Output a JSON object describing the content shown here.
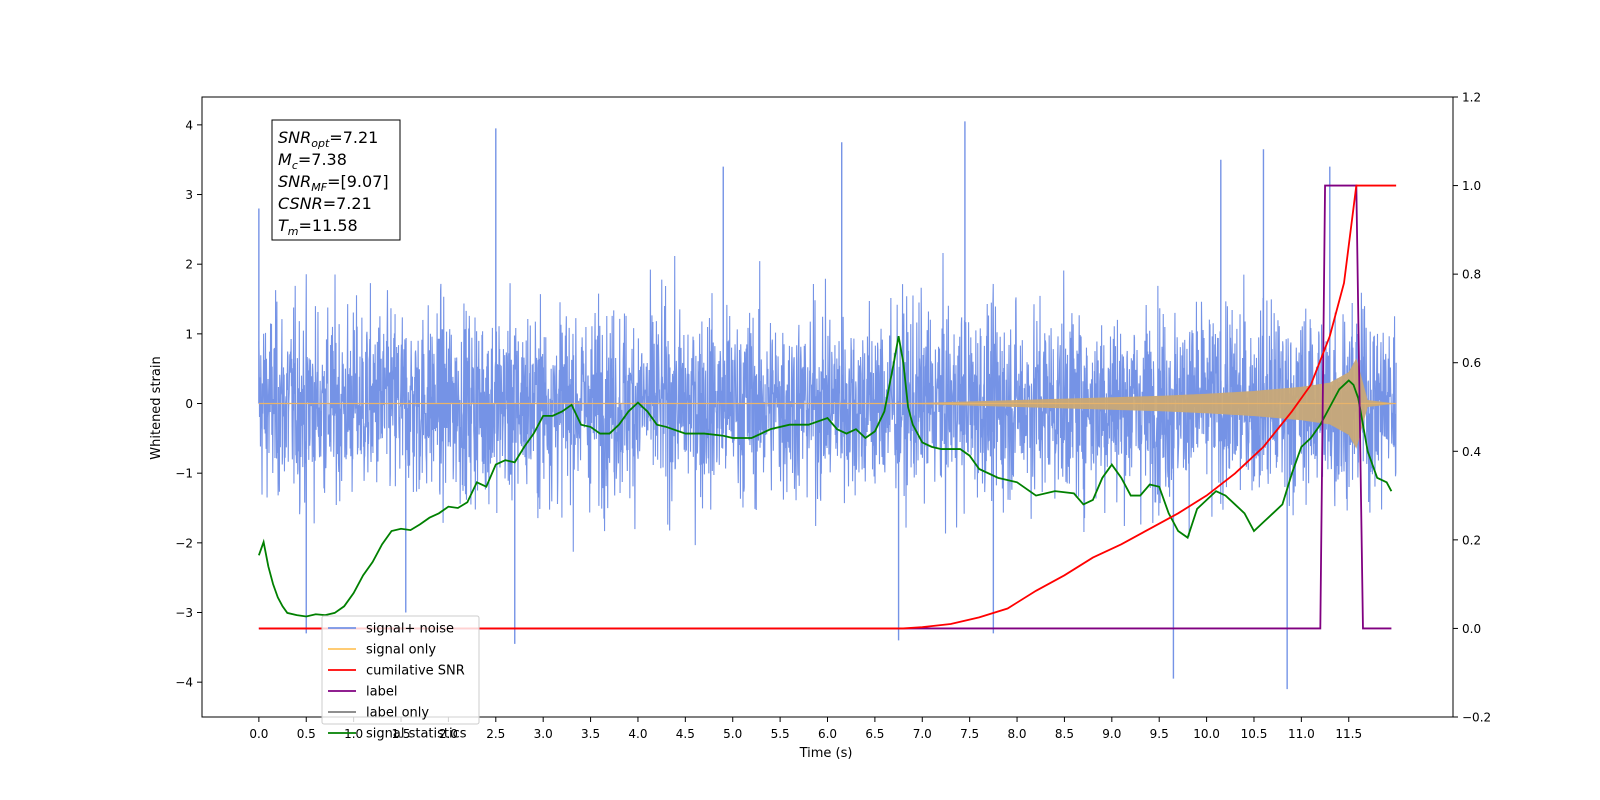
{
  "chart_data": {
    "type": "line",
    "xlabel": "Time (s)",
    "ylabel_left": "Whitened strain",
    "ylabel_right": "",
    "xlim": [
      -0.6,
      12.6
    ],
    "ylim_left": [
      -4.5,
      4.4
    ],
    "ylim_right": [
      -0.2,
      1.2
    ],
    "x_ticks": [
      "0.0",
      "0.5",
      "1.0",
      "1.5",
      "2.0",
      "2.5",
      "3.0",
      "3.5",
      "4.0",
      "4.5",
      "5.0",
      "5.5",
      "6.0",
      "6.5",
      "7.0",
      "7.5",
      "8.0",
      "8.5",
      "9.0",
      "9.5",
      "10.0",
      "10.5",
      "11.0",
      "11.5"
    ],
    "y_ticks_left": [
      "−4",
      "−3",
      "−2",
      "−1",
      "0",
      "1",
      "2",
      "3",
      "4"
    ],
    "y_ticks_right": [
      "−0.2",
      "0.0",
      "0.2",
      "0.4",
      "0.6",
      "0.8",
      "1.0",
      "1.2"
    ],
    "grid": false,
    "legend_position": "lower-left",
    "legend": [
      {
        "label": "signal+ noise",
        "color": "#7593e6"
      },
      {
        "label": "signal only",
        "color": "#ffc561"
      },
      {
        "label": "cumilative SNR",
        "color": "#ff0000"
      },
      {
        "label": "label",
        "color": "#800080"
      },
      {
        "label": "label only",
        "color": "#7f7f7f"
      },
      {
        "label": "signal statistics",
        "color": "#008000"
      }
    ],
    "annotation": {
      "lines": [
        {
          "var": "SNR",
          "sub": "opt",
          "rest": "=7.21"
        },
        {
          "var": "M",
          "sub": "c",
          "rest": "=7.38"
        },
        {
          "var": "SNR",
          "sub": "MF",
          "rest": "=[9.07]"
        },
        {
          "var": "CSNR",
          "sub": "",
          "rest": "=7.21"
        },
        {
          "var": "T",
          "sub": "m",
          "rest": "=11.58"
        }
      ]
    },
    "series": [
      {
        "name": "signal+ noise",
        "axis": "left",
        "color": "#7593e6",
        "x_range": [
          0.0,
          12.0
        ],
        "typical_band": [
          -1.5,
          1.5
        ],
        "spikes": [
          {
            "x": 0.0,
            "y": 2.8
          },
          {
            "x": 0.5,
            "y": -3.3
          },
          {
            "x": 1.55,
            "y": -3.0
          },
          {
            "x": 2.5,
            "y": 3.95
          },
          {
            "x": 2.7,
            "y": -3.45
          },
          {
            "x": 4.9,
            "y": 3.4
          },
          {
            "x": 6.15,
            "y": 3.75
          },
          {
            "x": 6.75,
            "y": -3.4
          },
          {
            "x": 7.45,
            "y": 4.05
          },
          {
            "x": 7.75,
            "y": -3.3
          },
          {
            "x": 9.65,
            "y": -3.95
          },
          {
            "x": 10.15,
            "y": 3.5
          },
          {
            "x": 10.6,
            "y": 3.65
          },
          {
            "x": 10.85,
            "y": -4.1
          },
          {
            "x": 11.3,
            "y": 3.4
          }
        ]
      },
      {
        "name": "signal only",
        "axis": "left",
        "color": "#ffc561",
        "x": [
          0.0,
          6.5,
          7.0,
          7.5,
          8.0,
          8.5,
          9.0,
          9.5,
          10.0,
          10.5,
          11.0,
          11.3,
          11.5,
          11.58,
          11.7,
          12.0
        ],
        "amplitude": [
          0.0,
          0.0,
          0.01,
          0.03,
          0.05,
          0.07,
          0.09,
          0.11,
          0.14,
          0.18,
          0.24,
          0.3,
          0.45,
          0.65,
          0.05,
          0.0
        ]
      },
      {
        "name": "cumilative SNR",
        "axis": "right",
        "color": "#ff0000",
        "x": [
          0.0,
          6.8,
          7.0,
          7.3,
          7.6,
          7.9,
          8.2,
          8.5,
          8.8,
          9.1,
          9.4,
          9.7,
          10.0,
          10.3,
          10.6,
          10.9,
          11.1,
          11.3,
          11.45,
          11.58,
          12.0
        ],
        "values": [
          0.0,
          0.0,
          0.003,
          0.01,
          0.025,
          0.045,
          0.085,
          0.12,
          0.16,
          0.19,
          0.225,
          0.26,
          0.3,
          0.35,
          0.41,
          0.49,
          0.55,
          0.66,
          0.78,
          1.0,
          1.0
        ]
      },
      {
        "name": "label",
        "axis": "right",
        "color": "#800080",
        "x": [
          0.0,
          11.2,
          11.25,
          11.58,
          11.65,
          11.95
        ],
        "values": [
          0.0,
          0.0,
          1.0,
          1.0,
          0.0,
          0.0
        ]
      },
      {
        "name": "signal statistics",
        "axis": "right",
        "color": "#008000",
        "x": [
          0.0,
          0.05,
          0.1,
          0.15,
          0.2,
          0.25,
          0.3,
          0.4,
          0.5,
          0.6,
          0.7,
          0.8,
          0.9,
          1.0,
          1.1,
          1.2,
          1.3,
          1.4,
          1.5,
          1.6,
          1.7,
          1.8,
          1.9,
          2.0,
          2.1,
          2.2,
          2.3,
          2.4,
          2.5,
          2.6,
          2.7,
          2.8,
          2.9,
          3.0,
          3.1,
          3.2,
          3.3,
          3.4,
          3.5,
          3.6,
          3.7,
          3.8,
          3.9,
          4.0,
          4.1,
          4.2,
          4.3,
          4.5,
          4.7,
          4.9,
          5.0,
          5.2,
          5.4,
          5.6,
          5.8,
          6.0,
          6.1,
          6.2,
          6.3,
          6.4,
          6.5,
          6.6,
          6.7,
          6.75,
          6.8,
          6.85,
          6.9,
          7.0,
          7.1,
          7.2,
          7.4,
          7.5,
          7.6,
          7.8,
          8.0,
          8.2,
          8.4,
          8.6,
          8.7,
          8.8,
          8.9,
          9.0,
          9.1,
          9.2,
          9.3,
          9.4,
          9.5,
          9.6,
          9.7,
          9.8,
          9.9,
          10.0,
          10.1,
          10.2,
          10.3,
          10.4,
          10.5,
          10.6,
          10.7,
          10.8,
          10.9,
          11.0,
          11.1,
          11.2,
          11.3,
          11.4,
          11.5,
          11.55,
          11.6,
          11.7,
          11.8,
          11.9,
          11.95
        ],
        "values": [
          0.165,
          0.195,
          0.14,
          0.1,
          0.07,
          0.05,
          0.035,
          0.03,
          0.027,
          0.032,
          0.03,
          0.035,
          0.05,
          0.08,
          0.12,
          0.15,
          0.19,
          0.22,
          0.225,
          0.222,
          0.235,
          0.25,
          0.26,
          0.275,
          0.272,
          0.285,
          0.33,
          0.32,
          0.37,
          0.38,
          0.375,
          0.41,
          0.44,
          0.48,
          0.48,
          0.49,
          0.505,
          0.46,
          0.455,
          0.44,
          0.44,
          0.46,
          0.49,
          0.51,
          0.49,
          0.46,
          0.455,
          0.44,
          0.44,
          0.435,
          0.43,
          0.43,
          0.45,
          0.46,
          0.46,
          0.475,
          0.45,
          0.44,
          0.45,
          0.43,
          0.445,
          0.49,
          0.6,
          0.66,
          0.6,
          0.5,
          0.46,
          0.42,
          0.41,
          0.405,
          0.405,
          0.39,
          0.36,
          0.34,
          0.33,
          0.3,
          0.31,
          0.305,
          0.28,
          0.29,
          0.34,
          0.37,
          0.34,
          0.3,
          0.3,
          0.325,
          0.32,
          0.26,
          0.22,
          0.205,
          0.27,
          0.29,
          0.31,
          0.3,
          0.28,
          0.26,
          0.22,
          0.24,
          0.26,
          0.28,
          0.35,
          0.41,
          0.43,
          0.46,
          0.5,
          0.54,
          0.56,
          0.55,
          0.52,
          0.4,
          0.34,
          0.33,
          0.31
        ]
      }
    ]
  }
}
